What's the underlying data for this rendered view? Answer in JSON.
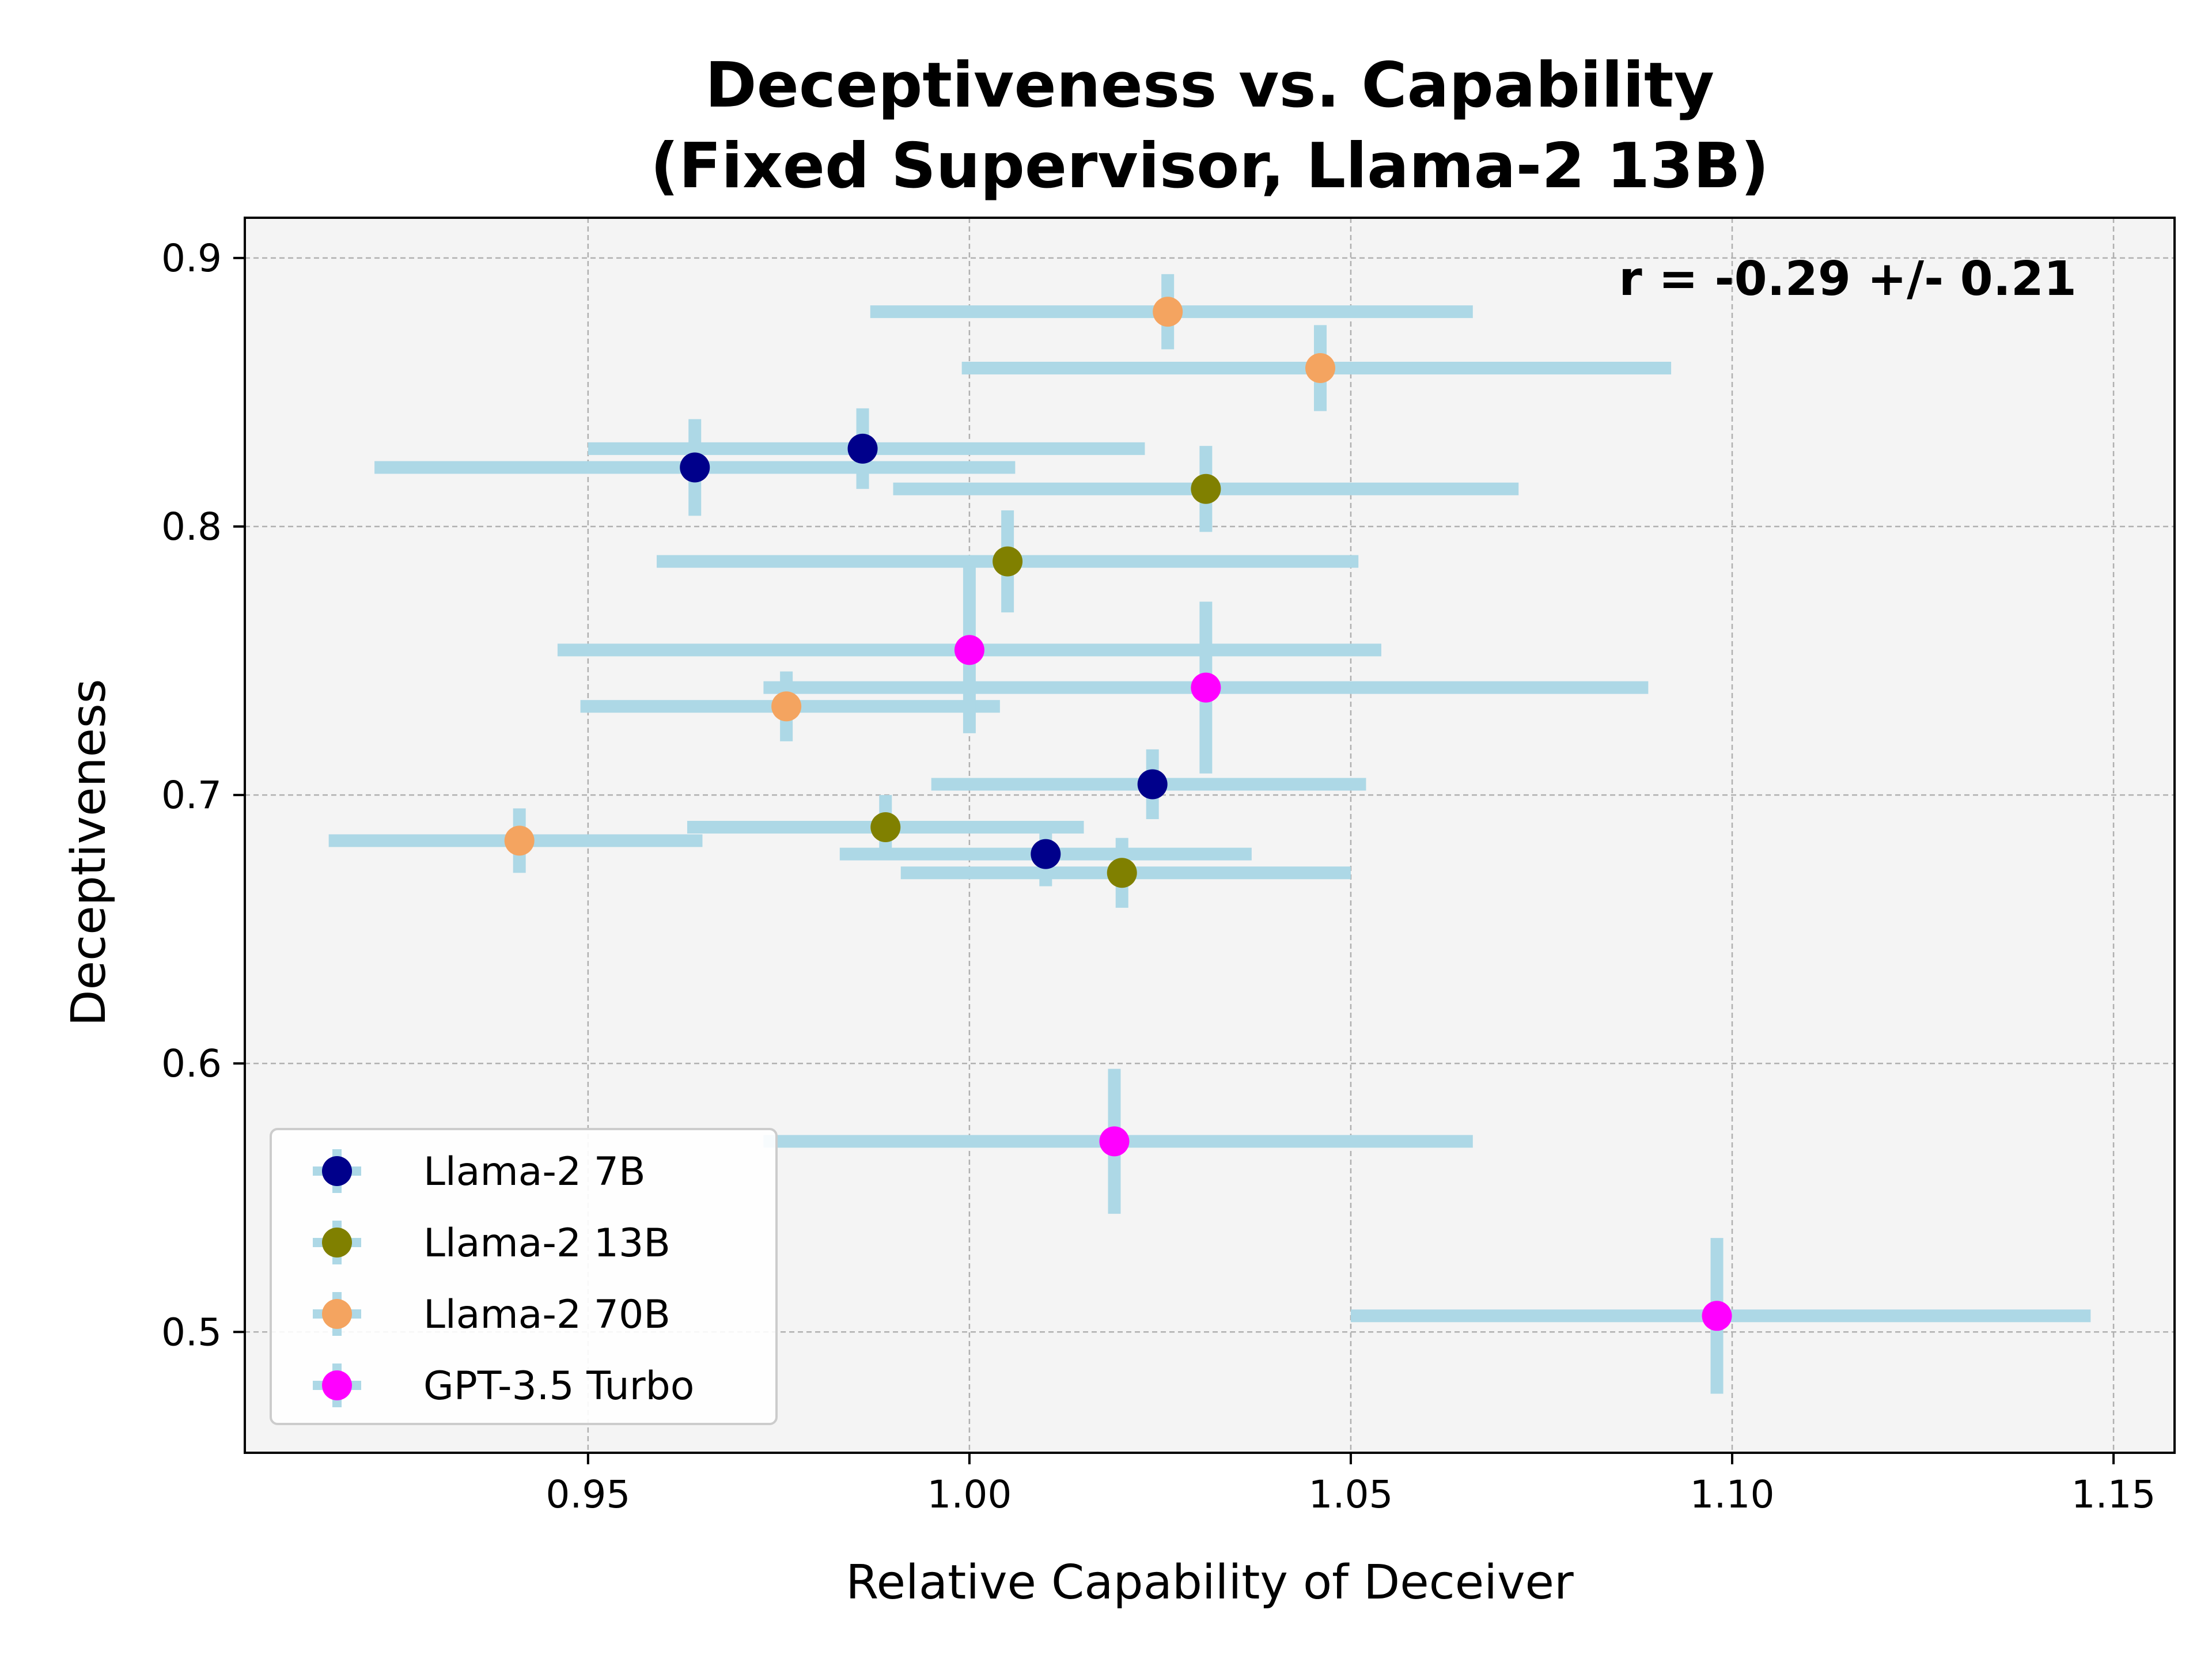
{
  "chart_data": {
    "type": "scatter",
    "title": [
      "Deceptiveness vs. Capability",
      "(Fixed Supervisor, Llama-2 13B)"
    ],
    "xlabel": "Relative Capability of Deceiver",
    "ylabel": "Deceptiveness",
    "xlim": [
      0.905,
      1.158
    ],
    "ylim": [
      0.455,
      0.915
    ],
    "xticks": [
      0.95,
      1.0,
      1.05,
      1.1,
      1.15
    ],
    "xtick_labels": [
      "0.95",
      "1.00",
      "1.05",
      "1.10",
      "1.15"
    ],
    "yticks": [
      0.5,
      0.6,
      0.7,
      0.8,
      0.9
    ],
    "ytick_labels": [
      "0.5",
      "0.6",
      "0.7",
      "0.8",
      "0.9"
    ],
    "grid": true,
    "legend_position": "bottom-left",
    "annotation": "r = -0.29 +/- 0.21",
    "error_bar_color": "#add8e6",
    "series": [
      {
        "name": "Llama-2 7B",
        "color": "#00008b",
        "points": [
          {
            "x": 0.964,
            "y": 0.822,
            "xerr": [
              0.922,
              1.006
            ],
            "yerr": [
              0.804,
              0.84
            ]
          },
          {
            "x": 0.986,
            "y": 0.829,
            "xerr": [
              0.95,
              1.023
            ],
            "yerr": [
              0.814,
              0.844
            ]
          },
          {
            "x": 1.024,
            "y": 0.704,
            "xerr": [
              0.995,
              1.052
            ],
            "yerr": [
              0.691,
              0.717
            ]
          },
          {
            "x": 1.01,
            "y": 0.678,
            "xerr": [
              0.983,
              1.037
            ],
            "yerr": [
              0.666,
              0.69
            ]
          }
        ]
      },
      {
        "name": "Llama-2 13B",
        "color": "#808000",
        "points": [
          {
            "x": 1.031,
            "y": 0.814,
            "xerr": [
              0.99,
              1.072
            ],
            "yerr": [
              0.798,
              0.83
            ]
          },
          {
            "x": 1.005,
            "y": 0.787,
            "xerr": [
              0.959,
              1.051
            ],
            "yerr": [
              0.768,
              0.806
            ]
          },
          {
            "x": 0.989,
            "y": 0.688,
            "xerr": [
              0.963,
              1.015
            ],
            "yerr": [
              0.676,
              0.7
            ]
          },
          {
            "x": 1.02,
            "y": 0.671,
            "xerr": [
              0.991,
              1.05
            ],
            "yerr": [
              0.658,
              0.684
            ]
          }
        ]
      },
      {
        "name": "Llama-2 70B",
        "color": "#f4a460",
        "points": [
          {
            "x": 1.026,
            "y": 0.88,
            "xerr": [
              0.987,
              1.066
            ],
            "yerr": [
              0.866,
              0.894
            ]
          },
          {
            "x": 1.046,
            "y": 0.859,
            "xerr": [
              0.999,
              1.092
            ],
            "yerr": [
              0.843,
              0.875
            ]
          },
          {
            "x": 0.976,
            "y": 0.733,
            "xerr": [
              0.949,
              1.004
            ],
            "yerr": [
              0.72,
              0.746
            ]
          },
          {
            "x": 0.941,
            "y": 0.683,
            "xerr": [
              0.916,
              0.965
            ],
            "yerr": [
              0.671,
              0.695
            ]
          }
        ]
      },
      {
        "name": "GPT-3.5 Turbo",
        "color": "#ff00ff",
        "points": [
          {
            "x": 1.0,
            "y": 0.754,
            "xerr": [
              0.946,
              1.054
            ],
            "yerr": [
              0.723,
              0.785
            ]
          },
          {
            "x": 1.031,
            "y": 0.74,
            "xerr": [
              0.973,
              1.089
            ],
            "yerr": [
              0.708,
              0.772
            ]
          },
          {
            "x": 1.019,
            "y": 0.571,
            "xerr": [
              0.973,
              1.066
            ],
            "yerr": [
              0.544,
              0.598
            ]
          },
          {
            "x": 1.098,
            "y": 0.506,
            "xerr": [
              1.05,
              1.147
            ],
            "yerr": [
              0.477,
              0.535
            ]
          }
        ]
      }
    ]
  }
}
